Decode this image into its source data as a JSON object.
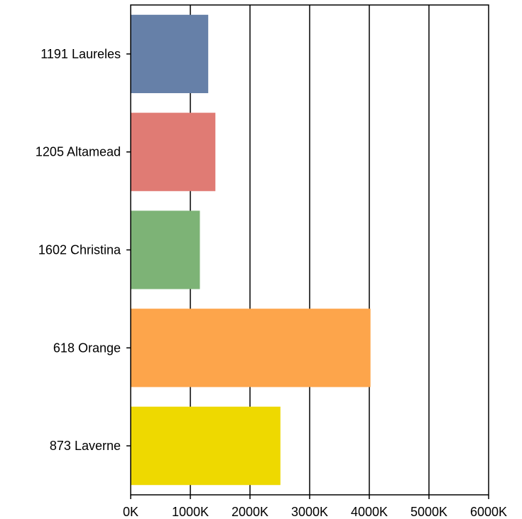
{
  "chart_data": {
    "type": "bar",
    "orientation": "horizontal",
    "categories": [
      "1191 Laureles",
      "1205 Altamead",
      "1602 Christina",
      "618 Orange",
      "873 Laverne"
    ],
    "values": [
      1300,
      1420,
      1160,
      4020,
      2510
    ],
    "value_unit": "K",
    "colors": [
      "#6680a8",
      "#e07b74",
      "#7db376",
      "#fda54b",
      "#eed900"
    ],
    "xlim": [
      0,
      6000
    ],
    "xticks": [
      0,
      1000,
      2000,
      3000,
      4000,
      5000,
      6000
    ],
    "xtick_labels": [
      "0K",
      "1000K",
      "2000K",
      "3000K",
      "4000K",
      "5000K",
      "6000K"
    ],
    "title": "",
    "xlabel": "",
    "ylabel": "",
    "grid": "vertical",
    "legend": "none"
  }
}
